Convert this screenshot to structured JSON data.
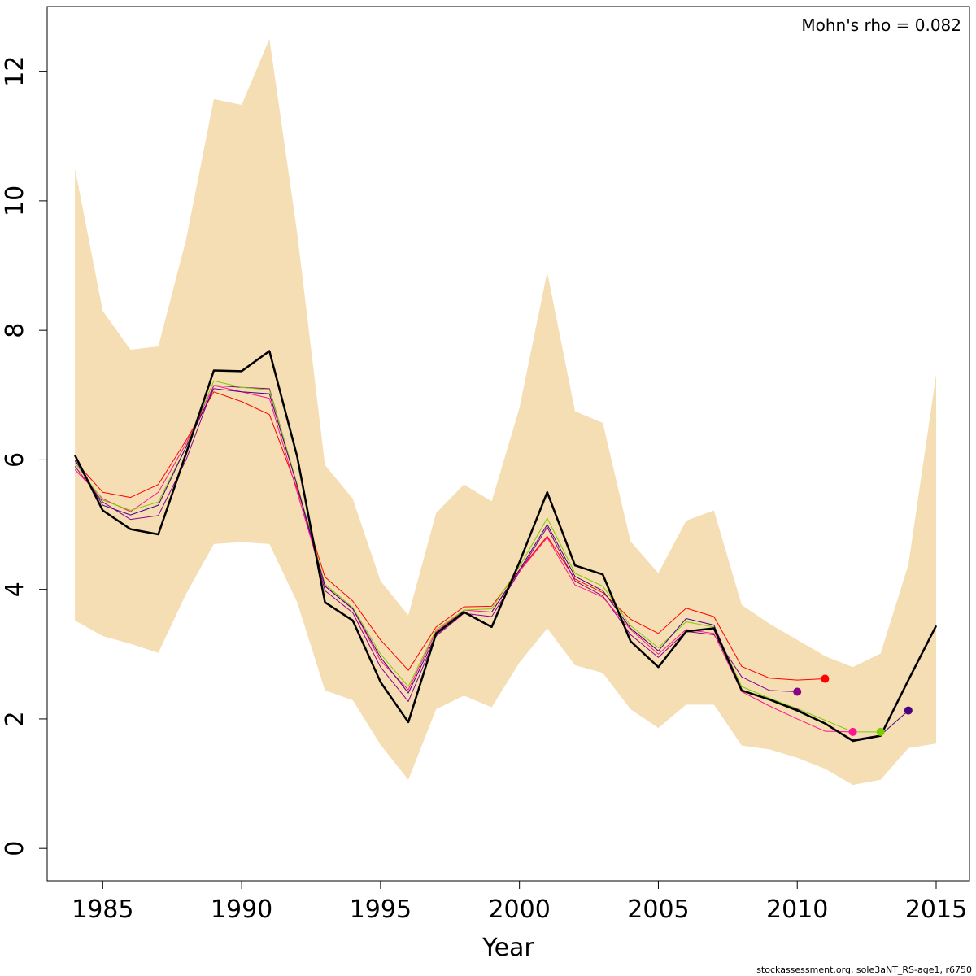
{
  "chart_data": {
    "type": "line",
    "title": "",
    "xlabel": "Year",
    "ylabel": "",
    "xlim": [
      1983,
      2016.2
    ],
    "ylim": [
      -0.5,
      13
    ],
    "x_ticks": [
      1985,
      1990,
      1995,
      2000,
      2005,
      2010,
      2015
    ],
    "y_ticks": [
      0,
      2,
      4,
      6,
      8,
      10,
      12
    ],
    "grid": false,
    "annotation": "Mohn's rho = 0.082",
    "footer": "stockassessment.org, sole3aNT_RS-age1, r6750",
    "band": {
      "color": "#F5DEB3",
      "x": [
        1984,
        1985,
        1986,
        1987,
        1988,
        1989,
        1990,
        1991,
        1992,
        1993,
        1994,
        1995,
        1996,
        1997,
        1998,
        1999,
        2000,
        2001,
        2002,
        2003,
        2004,
        2005,
        2006,
        2007,
        2008,
        2009,
        2010,
        2011,
        2012,
        2013,
        2014,
        2015
      ],
      "upper": [
        10.5,
        8.3,
        7.7,
        7.75,
        9.4,
        11.57,
        11.48,
        12.5,
        9.5,
        5.92,
        5.4,
        4.13,
        3.6,
        5.18,
        5.62,
        5.36,
        6.8,
        8.9,
        6.75,
        6.57,
        4.74,
        4.25,
        5.06,
        5.22,
        3.76,
        3.47,
        3.22,
        2.97,
        2.8,
        3.01,
        4.38,
        7.32
      ],
      "lower": [
        3.52,
        3.28,
        3.16,
        3.02,
        3.93,
        4.7,
        4.73,
        4.7,
        3.8,
        2.44,
        2.29,
        1.6,
        1.06,
        2.15,
        2.36,
        2.18,
        2.87,
        3.4,
        2.83,
        2.71,
        2.15,
        1.86,
        2.22,
        2.22,
        1.59,
        1.53,
        1.4,
        1.23,
        0.98,
        1.06,
        1.55,
        1.62
      ]
    },
    "series": [
      {
        "color": "#FF0000",
        "end_year": 2011,
        "width": 1,
        "x": [
          1984,
          1985,
          1986,
          1987,
          1988,
          1989,
          1990,
          1991,
          1992,
          1993,
          1994,
          1995,
          1996,
          1997,
          1998,
          1999,
          2000,
          2001,
          2002,
          2003,
          2004,
          2005,
          2006,
          2007,
          2008,
          2009,
          2010,
          2011
        ],
        "values": [
          5.98,
          5.5,
          5.42,
          5.62,
          6.3,
          7.05,
          6.9,
          6.7,
          5.55,
          4.19,
          3.82,
          3.22,
          2.75,
          3.42,
          3.73,
          3.74,
          4.3,
          4.82,
          4.16,
          3.95,
          3.54,
          3.32,
          3.71,
          3.58,
          2.81,
          2.63,
          2.6,
          2.62
        ]
      },
      {
        "color": "#8B008B",
        "end_year": 2010,
        "width": 1,
        "x": [
          1984,
          1985,
          1986,
          1987,
          1988,
          1989,
          1990,
          1991,
          1992,
          1993,
          1994,
          1995,
          1996,
          1997,
          1998,
          1999,
          2000,
          2001,
          2002,
          2003,
          2004,
          2005,
          2006,
          2007,
          2008,
          2009,
          2010
        ],
        "values": [
          5.9,
          5.35,
          5.08,
          5.14,
          6.0,
          7.15,
          7.12,
          7.1,
          5.6,
          3.98,
          3.64,
          2.8,
          2.27,
          3.28,
          3.63,
          3.58,
          4.27,
          4.96,
          4.13,
          3.9,
          3.3,
          2.95,
          3.35,
          3.3,
          2.65,
          2.44,
          2.42
        ]
      },
      {
        "color": "#FF1493",
        "end_year": 2012,
        "width": 1,
        "x": [
          1984,
          1985,
          1986,
          1987,
          1988,
          1989,
          1990,
          1991,
          1992,
          1993,
          1994,
          1995,
          1996,
          1997,
          1998,
          1999,
          2000,
          2001,
          2002,
          2003,
          2004,
          2005,
          2006,
          2007,
          2008,
          2009,
          2010,
          2011,
          2012
        ],
        "values": [
          5.85,
          5.4,
          5.2,
          5.5,
          6.25,
          7.15,
          7.05,
          6.95,
          5.5,
          4.05,
          3.7,
          2.9,
          2.45,
          3.35,
          3.68,
          3.65,
          4.28,
          4.8,
          4.07,
          3.88,
          3.38,
          3.0,
          3.38,
          3.32,
          2.42,
          2.2,
          2.0,
          1.81,
          1.8
        ]
      },
      {
        "color": "#7CCD00",
        "end_year": 2013,
        "width": 1,
        "x": [
          1984,
          1985,
          1986,
          1987,
          1988,
          1989,
          1990,
          1991,
          1992,
          1993,
          1994,
          1995,
          1996,
          1997,
          1998,
          1999,
          2000,
          2001,
          2002,
          2003,
          2004,
          2005,
          2006,
          2007,
          2008,
          2009,
          2010,
          2011,
          2012,
          2013
        ],
        "values": [
          5.95,
          5.38,
          5.22,
          5.35,
          6.2,
          7.22,
          7.12,
          7.08,
          5.62,
          4.08,
          3.72,
          3.0,
          2.5,
          3.38,
          3.68,
          3.7,
          4.35,
          5.1,
          4.25,
          4.05,
          3.44,
          3.1,
          3.5,
          3.42,
          2.5,
          2.32,
          2.16,
          1.98,
          1.8,
          1.8
        ]
      },
      {
        "color": "#4B0082",
        "end_year": 2014,
        "width": 1,
        "x": [
          1984,
          1985,
          1986,
          1987,
          1988,
          1989,
          1990,
          1991,
          1992,
          1993,
          1994,
          1995,
          1996,
          1997,
          1998,
          1999,
          2000,
          2001,
          2002,
          2003,
          2004,
          2005,
          2006,
          2007,
          2008,
          2009,
          2010,
          2011,
          2012,
          2013,
          2014
        ],
        "values": [
          6.0,
          5.3,
          5.15,
          5.3,
          6.2,
          7.1,
          7.05,
          7.02,
          5.6,
          4.05,
          3.7,
          2.95,
          2.4,
          3.3,
          3.65,
          3.65,
          4.3,
          5.0,
          4.2,
          3.98,
          3.4,
          3.05,
          3.55,
          3.45,
          2.45,
          2.3,
          2.15,
          1.92,
          1.68,
          1.75,
          2.13
        ]
      },
      {
        "color": "#000000",
        "end_year": null,
        "width": 2.5,
        "x": [
          1984,
          1985,
          1986,
          1987,
          1988,
          1989,
          1990,
          1991,
          1992,
          1993,
          1994,
          1995,
          1996,
          1997,
          1998,
          1999,
          2000,
          2001,
          2002,
          2003,
          2004,
          2005,
          2006,
          2007,
          2008,
          2009,
          2010,
          2011,
          2012,
          2013,
          2014,
          2015
        ],
        "values": [
          6.07,
          5.22,
          4.93,
          4.85,
          6.1,
          7.38,
          7.37,
          7.68,
          6.05,
          3.8,
          3.52,
          2.57,
          1.95,
          3.32,
          3.65,
          3.42,
          4.42,
          5.5,
          4.37,
          4.23,
          3.2,
          2.8,
          3.35,
          3.4,
          2.44,
          2.3,
          2.13,
          1.93,
          1.66,
          1.74,
          2.6,
          3.44
        ]
      }
    ],
    "end_points": [
      {
        "year": 2010,
        "value": 2.42,
        "color": "#8B008B"
      },
      {
        "year": 2011,
        "value": 2.62,
        "color": "#FF0000"
      },
      {
        "year": 2012,
        "value": 1.8,
        "color": "#FF1493"
      },
      {
        "year": 2013,
        "value": 1.8,
        "color": "#7CCD00"
      },
      {
        "year": 2014,
        "value": 2.13,
        "color": "#4B0082"
      }
    ]
  }
}
